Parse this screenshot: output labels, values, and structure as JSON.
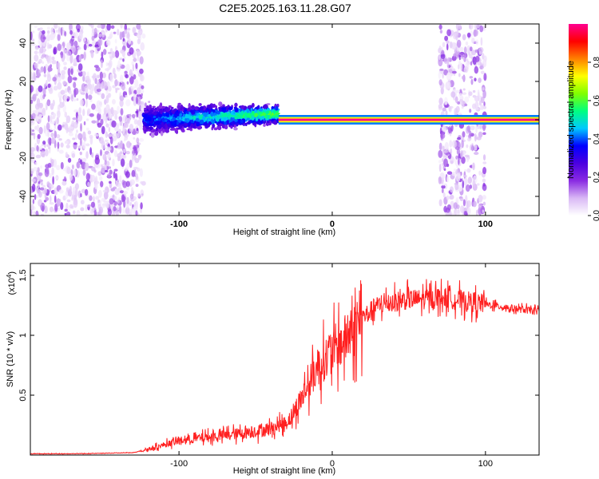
{
  "figure": {
    "title": "C2E5.2025.163.11.28.G07"
  },
  "chart_data": [
    {
      "type": "heatmap",
      "xlabel": "Height of straight line (km)",
      "ylabel": "Frequency (Hz)",
      "xlim": [
        -197,
        135
      ],
      "ylim": [
        -50,
        50
      ],
      "xticks": [
        -100,
        0,
        100
      ],
      "yticks": [
        -40,
        -20,
        0,
        20,
        40
      ],
      "colorbar": {
        "label": "Normalized spectral amplitude",
        "range": [
          0,
          1
        ],
        "ticks": [
          0.0,
          0.2,
          0.4,
          0.6,
          0.8
        ],
        "colormap": [
          "#ffffff",
          "#d9b8f5",
          "#8a2be2",
          "#4b00e0",
          "#0000ff",
          "#00c8ff",
          "#00ff80",
          "#80ff00",
          "#ffff00",
          "#ff8000",
          "#ff0000",
          "#ff0090"
        ]
      },
      "regions": [
        {
          "name": "scatter_noise",
          "x": [
            -197,
            -123
          ],
          "y": [
            -50,
            50
          ]
        },
        {
          "name": "broadened_line",
          "x": [
            -123,
            -35
          ],
          "y": [
            -10,
            12
          ]
        },
        {
          "name": "narrow_line",
          "x": [
            -35,
            135
          ],
          "y": [
            -1,
            1
          ],
          "peak": 1.0
        },
        {
          "name": "gap_noise",
          "x": [
            70,
            100
          ],
          "y": [
            -50,
            50
          ]
        }
      ]
    },
    {
      "type": "line",
      "xlabel": "Height of straight line (km)",
      "ylabel": "SNR (10 * v/v)",
      "scale_label": "(x10",
      "scale_exponent": "4",
      "xlim": [
        -197,
        135
      ],
      "ylim": [
        0,
        1.6
      ],
      "xticks": [
        -100,
        0,
        100
      ],
      "yticks": [
        0.5,
        1.0,
        1.5
      ],
      "color": "#ff2020",
      "series": [
        {
          "envelope_x": [
            -197,
            -160,
            -130,
            -120,
            -100,
            -80,
            -60,
            -40,
            -30,
            -25,
            -20,
            -15,
            -10,
            -5,
            0,
            5,
            10,
            15,
            20,
            30,
            40,
            50,
            60,
            70,
            80,
            90,
            100,
            110,
            120,
            135
          ],
          "envelope_y": [
            0.01,
            0.012,
            0.02,
            0.05,
            0.12,
            0.15,
            0.18,
            0.22,
            0.27,
            0.35,
            0.48,
            0.6,
            0.72,
            0.8,
            0.88,
            0.92,
            0.98,
            1.05,
            1.15,
            1.25,
            1.28,
            1.3,
            1.3,
            1.32,
            1.3,
            1.28,
            1.26,
            1.24,
            1.22,
            1.2
          ]
        }
      ]
    }
  ]
}
